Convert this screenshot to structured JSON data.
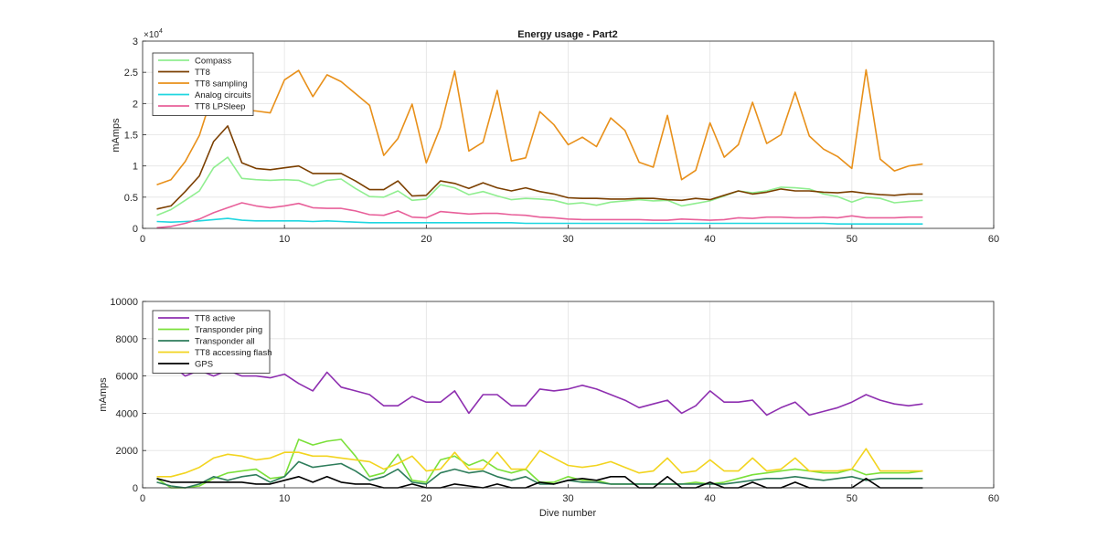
{
  "chart_data": [
    {
      "type": "line",
      "title": "Energy usage - Part2",
      "xlabel": "",
      "ylabel": "mAmps",
      "exponent_label": "×10",
      "exponent_power": "4",
      "xlim": [
        0,
        60
      ],
      "ylim": [
        0,
        30000
      ],
      "xticks": [
        0,
        10,
        20,
        30,
        40,
        50,
        60
      ],
      "xticklabels": [
        "0",
        "10",
        "20",
        "30",
        "40",
        "50",
        "60"
      ],
      "yticks": [
        0,
        5000,
        10000,
        15000,
        20000,
        25000,
        30000
      ],
      "yticklabels": [
        "0",
        "0.5",
        "1",
        "1.5",
        "2",
        "2.5",
        "3"
      ],
      "grid": true,
      "legend_position": "top-left",
      "x": [
        1,
        2,
        3,
        4,
        5,
        6,
        7,
        8,
        9,
        10,
        11,
        12,
        13,
        14,
        15,
        16,
        17,
        18,
        19,
        20,
        21,
        22,
        23,
        24,
        25,
        26,
        27,
        28,
        29,
        30,
        31,
        32,
        33,
        34,
        35,
        36,
        37,
        38,
        39,
        40,
        41,
        42,
        43,
        44,
        45,
        46,
        47,
        48,
        49,
        50,
        51,
        52,
        53,
        54,
        55
      ],
      "series": [
        {
          "name": "Compass",
          "color": "#90ee90",
          "values": [
            2100,
            3000,
            4500,
            6000,
            9700,
            11400,
            8000,
            7800,
            7700,
            7800,
            7700,
            6800,
            7700,
            7900,
            6400,
            5100,
            5000,
            6000,
            4500,
            4700,
            7000,
            6500,
            5400,
            5900,
            5200,
            4600,
            4800,
            4700,
            4500,
            3900,
            4100,
            3700,
            4200,
            4400,
            4600,
            4400,
            4500,
            3600,
            4000,
            4400,
            5200,
            6000,
            5700,
            6000,
            6600,
            6500,
            6300,
            5500,
            5100,
            4200,
            5000,
            4800,
            4100,
            4300,
            4500
          ]
        },
        {
          "name": "TT8",
          "color": "#7b3f00",
          "values": [
            3100,
            3600,
            5900,
            8400,
            13900,
            16400,
            10500,
            9600,
            9400,
            9700,
            10000,
            8800,
            8800,
            8800,
            7600,
            6200,
            6200,
            7600,
            5200,
            5300,
            7600,
            7200,
            6400,
            7300,
            6500,
            6000,
            6500,
            5900,
            5500,
            4900,
            4800,
            4800,
            4700,
            4700,
            4800,
            4800,
            4600,
            4500,
            4800,
            4600,
            5300,
            6000,
            5500,
            5800,
            6300,
            6000,
            6000,
            5800,
            5700,
            5900,
            5600,
            5400,
            5300,
            5500,
            5500
          ]
        },
        {
          "name": "TT8 sampling",
          "color": "#e8901a",
          "values": [
            7000,
            7800,
            10700,
            14900,
            22000,
            20000,
            19000,
            18800,
            18500,
            23800,
            25300,
            21100,
            24600,
            23500,
            21600,
            19700,
            11700,
            14400,
            19900,
            10500,
            16200,
            25200,
            12400,
            13800,
            22100,
            10800,
            11300,
            18700,
            16600,
            13400,
            14600,
            13100,
            17700,
            15700,
            10600,
            9800,
            18100,
            7800,
            9300,
            16900,
            11400,
            13400,
            20200,
            13600,
            15000,
            21800,
            14800,
            12700,
            11500,
            9600,
            25400,
            11100,
            9200,
            10000,
            10300
          ]
        },
        {
          "name": "Analog circuits",
          "color": "#1fd6e0",
          "values": [
            1100,
            1000,
            1100,
            1200,
            1400,
            1600,
            1300,
            1200,
            1200,
            1200,
            1200,
            1100,
            1200,
            1100,
            1000,
            900,
            900,
            900,
            900,
            900,
            900,
            900,
            900,
            900,
            900,
            900,
            800,
            800,
            800,
            800,
            800,
            800,
            800,
            800,
            800,
            800,
            800,
            800,
            800,
            800,
            800,
            800,
            800,
            800,
            800,
            800,
            800,
            800,
            700,
            700,
            700,
            700,
            700,
            700,
            700
          ]
        },
        {
          "name": "TT8 LPSleep",
          "color": "#e8609a",
          "values": [
            100,
            300,
            800,
            1500,
            2500,
            3300,
            4100,
            3600,
            3300,
            3600,
            4000,
            3300,
            3200,
            3200,
            2800,
            2200,
            2100,
            2800,
            1800,
            1700,
            2700,
            2500,
            2300,
            2400,
            2400,
            2200,
            2100,
            1800,
            1700,
            1500,
            1400,
            1400,
            1400,
            1400,
            1400,
            1300,
            1300,
            1500,
            1400,
            1300,
            1400,
            1700,
            1600,
            1800,
            1800,
            1700,
            1700,
            1800,
            1700,
            2000,
            1700,
            1700,
            1700,
            1800,
            1800
          ]
        }
      ]
    },
    {
      "type": "line",
      "title": "",
      "xlabel": "Dive number",
      "ylabel": "mAmps",
      "xlim": [
        0,
        60
      ],
      "ylim": [
        0,
        10000
      ],
      "xticks": [
        0,
        10,
        20,
        30,
        40,
        50,
        60
      ],
      "xticklabels": [
        "0",
        "10",
        "20",
        "30",
        "40",
        "50",
        "60"
      ],
      "yticks": [
        0,
        2000,
        4000,
        6000,
        8000,
        10000
      ],
      "yticklabels": [
        "0",
        "2000",
        "4000",
        "6000",
        "8000",
        "10000"
      ],
      "grid": true,
      "legend_position": "top-left",
      "x": [
        1,
        2,
        3,
        4,
        5,
        6,
        7,
        8,
        9,
        10,
        11,
        12,
        13,
        14,
        15,
        16,
        17,
        18,
        19,
        20,
        21,
        22,
        23,
        24,
        25,
        26,
        27,
        28,
        29,
        30,
        31,
        32,
        33,
        34,
        35,
        36,
        37,
        38,
        39,
        40,
        41,
        42,
        43,
        44,
        45,
        46,
        47,
        48,
        49,
        50,
        51,
        52,
        53,
        54,
        55
      ],
      "series": [
        {
          "name": "TT8 active",
          "color": "#8e2fb0",
          "values": [
            6300,
            6600,
            6000,
            6300,
            6000,
            6300,
            6000,
            6000,
            5900,
            6100,
            5600,
            5200,
            6200,
            5400,
            5200,
            5000,
            4400,
            4400,
            4900,
            4600,
            4600,
            5200,
            4000,
            5000,
            5000,
            4400,
            4400,
            5300,
            5200,
            5300,
            5500,
            5300,
            5000,
            4700,
            4300,
            4500,
            4700,
            4000,
            4400,
            5200,
            4600,
            4600,
            4700,
            3900,
            4300,
            4600,
            3900,
            4100,
            4300,
            4600,
            5000,
            4700,
            4500,
            4400,
            4500
          ]
        },
        {
          "name": "Transponder ping",
          "color": "#7be03a",
          "values": [
            500,
            0,
            0,
            100,
            500,
            800,
            900,
            1000,
            500,
            600,
            2600,
            2300,
            2500,
            2600,
            1700,
            600,
            800,
            1800,
            400,
            300,
            1500,
            1700,
            1200,
            1500,
            1000,
            800,
            1000,
            300,
            300,
            600,
            400,
            400,
            200,
            200,
            200,
            200,
            200,
            200,
            300,
            200,
            300,
            500,
            700,
            800,
            900,
            1000,
            900,
            800,
            800,
            1000,
            700,
            800,
            800,
            800,
            900
          ]
        },
        {
          "name": "Transponder all",
          "color": "#2e7d5b",
          "values": [
            300,
            100,
            0,
            200,
            600,
            400,
            600,
            700,
            300,
            600,
            1400,
            1100,
            1200,
            1300,
            900,
            400,
            600,
            1000,
            300,
            200,
            800,
            1000,
            800,
            900,
            600,
            400,
            600,
            200,
            200,
            400,
            300,
            300,
            200,
            200,
            200,
            200,
            200,
            200,
            200,
            200,
            200,
            300,
            400,
            500,
            500,
            600,
            500,
            400,
            500,
            600,
            400,
            500,
            500,
            500,
            500
          ]
        },
        {
          "name": "TT8 accessing flash",
          "color": "#f2d41f",
          "values": [
            600,
            600,
            800,
            1100,
            1600,
            1800,
            1700,
            1500,
            1600,
            1900,
            1900,
            1700,
            1700,
            1600,
            1500,
            1400,
            1000,
            1300,
            1700,
            900,
            1000,
            1900,
            1000,
            1000,
            1900,
            1000,
            1000,
            2000,
            1600,
            1200,
            1100,
            1200,
            1400,
            1100,
            800,
            900,
            1600,
            800,
            900,
            1500,
            900,
            900,
            1600,
            900,
            1000,
            1600,
            900,
            900,
            900,
            1000,
            2100,
            900,
            900,
            900,
            900
          ]
        },
        {
          "name": "GPS",
          "color": "#000000",
          "values": [
            500,
            300,
            300,
            300,
            300,
            300,
            300,
            200,
            200,
            400,
            600,
            300,
            600,
            300,
            200,
            200,
            0,
            0,
            200,
            0,
            0,
            200,
            100,
            0,
            200,
            0,
            0,
            300,
            200,
            400,
            500,
            400,
            600,
            600,
            0,
            0,
            600,
            0,
            0,
            300,
            0,
            0,
            300,
            0,
            0,
            300,
            0,
            0,
            0,
            0,
            500,
            0,
            0,
            0,
            0
          ]
        }
      ]
    }
  ]
}
